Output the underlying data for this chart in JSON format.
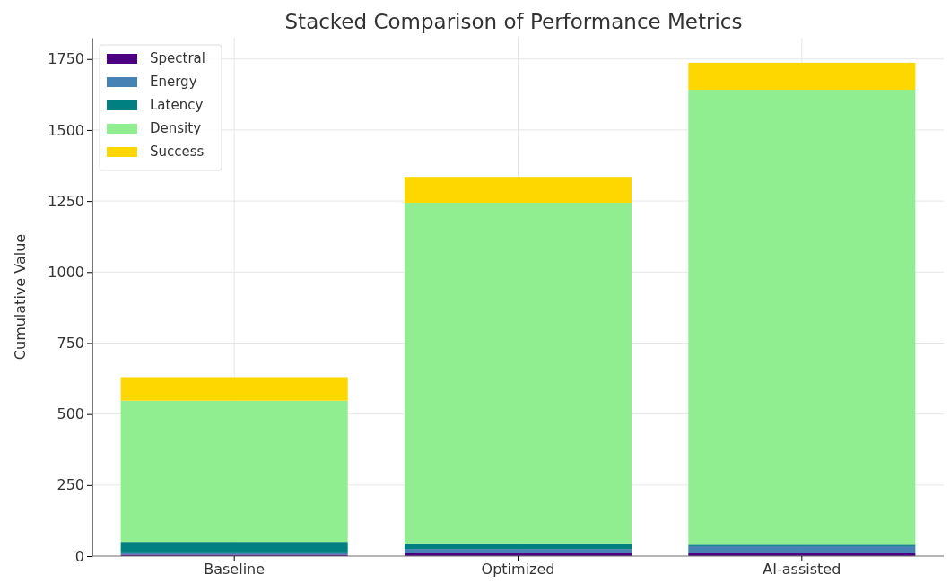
{
  "chart_data": {
    "type": "bar",
    "title": "Stacked Comparison of Performance Metrics",
    "ylabel": "Cumulative Value",
    "categories": [
      "Baseline",
      "Optimized",
      "AI-assisted"
    ],
    "stacked": true,
    "series": [
      {
        "name": "Spectral",
        "color": "#4b0082",
        "values": [
          5,
          10,
          10
        ]
      },
      {
        "name": "Energy",
        "color": "#4682b4",
        "values": [
          8,
          15,
          25
        ]
      },
      {
        "name": "Latency",
        "color": "#008080",
        "values": [
          37,
          20,
          5
        ]
      },
      {
        "name": "Density",
        "color": "#90ee90",
        "values": [
          497,
          1199,
          1602
        ]
      },
      {
        "name": "Success",
        "color": "#ffd700",
        "values": [
          83,
          91,
          95
        ]
      }
    ],
    "ylim": [
      0,
      1825
    ],
    "yticks": [
      0,
      250,
      500,
      750,
      1000,
      1250,
      1500,
      1750
    ],
    "grid": true,
    "legend": "top left"
  }
}
